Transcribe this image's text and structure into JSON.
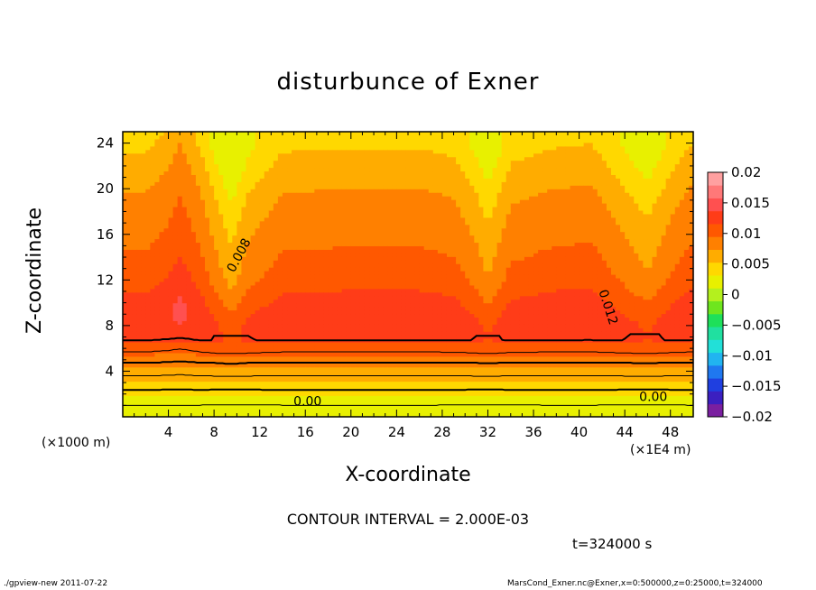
{
  "chart_data": {
    "type": "heatmap",
    "title": "disturbunce of Exner",
    "xlabel": "X-coordinate",
    "ylabel": "Z-coordinate",
    "x_unit_left": "(×1000 m)",
    "x_unit_right": "(×1E4 m)",
    "xlim": [
      0,
      50
    ],
    "ylim": [
      0,
      25
    ],
    "x_ticks": [
      4,
      8,
      12,
      16,
      20,
      24,
      28,
      32,
      36,
      40,
      44,
      48
    ],
    "y_ticks": [
      4,
      8,
      12,
      16,
      20,
      24
    ],
    "colorbar": {
      "min": -0.02,
      "max": 0.02,
      "tick_values": [
        0.02,
        0.015,
        0.01,
        0.005,
        0,
        -0.005,
        -0.01,
        -0.015,
        -0.02
      ],
      "tick_labels": [
        "0.02",
        "0.015",
        "0.01",
        "0.005",
        "0",
        "−0.005",
        "−0.01",
        "−0.015",
        "−0.02"
      ],
      "colors": [
        "#7a1fa0",
        "#3b1fc0",
        "#1f3fe0",
        "#1f78f0",
        "#21b4f0",
        "#22e0d8",
        "#20e0a0",
        "#1ee05a",
        "#6ee61e",
        "#b4f01e",
        "#e8f000",
        "#ffd800",
        "#ffac00",
        "#ff8000",
        "#ff5800",
        "#ff3c18",
        "#ff5050",
        "#ff7878",
        "#ffa0a0"
      ]
    },
    "contour_interval": "CONTOUR INTERVAL = 2.000E-03",
    "contour_labels": [
      {
        "text": "0.008",
        "x": 10.5,
        "y": 14.0,
        "angle": -62
      },
      {
        "text": "0.012",
        "x": 42.2,
        "y": 9.5,
        "angle": 72
      },
      {
        "text": "0.00",
        "x": 16.2,
        "y": 1.0,
        "angle": 0
      },
      {
        "text": "0.00",
        "x": 46.5,
        "y": 1.4,
        "angle": 0
      }
    ],
    "field_profile": {
      "x": [
        0,
        2,
        4,
        5,
        6,
        8,
        9.5,
        11,
        14,
        20,
        26,
        29,
        31,
        32,
        34,
        38,
        41,
        43,
        46,
        48,
        50
      ],
      "shift": [
        0,
        0,
        0.3,
        0.6,
        0.3,
        -0.4,
        -0.9,
        -0.4,
        0,
        0.05,
        0.05,
        -0.05,
        -0.4,
        -0.7,
        -0.1,
        0.05,
        0.1,
        -0.2,
        -0.65,
        -0.2,
        0.1
      ]
    },
    "z_profile": {
      "z": [
        0,
        1,
        2,
        3,
        4,
        5,
        6,
        7,
        8,
        9,
        10,
        11,
        12,
        13,
        14,
        15,
        16,
        17,
        18,
        19,
        20,
        21,
        22,
        23,
        24,
        25
      ],
      "value": [
        0.001,
        0.002,
        0.0035,
        0.005,
        0.0068,
        0.0085,
        0.0108,
        0.0126,
        0.013,
        0.0128,
        0.0122,
        0.0115,
        0.0108,
        0.0102,
        0.0097,
        0.0093,
        0.0089,
        0.0085,
        0.0081,
        0.0077,
        0.0072,
        0.0066,
        0.006,
        0.0054,
        0.0048,
        0.0042
      ]
    },
    "time_label": "t=324000 s"
  },
  "footer": {
    "left": "./gpview-new   2011-07-22",
    "right": "MarsCond_Exner.nc@Exner,x=0:500000,z=0:25000,t=324000"
  }
}
